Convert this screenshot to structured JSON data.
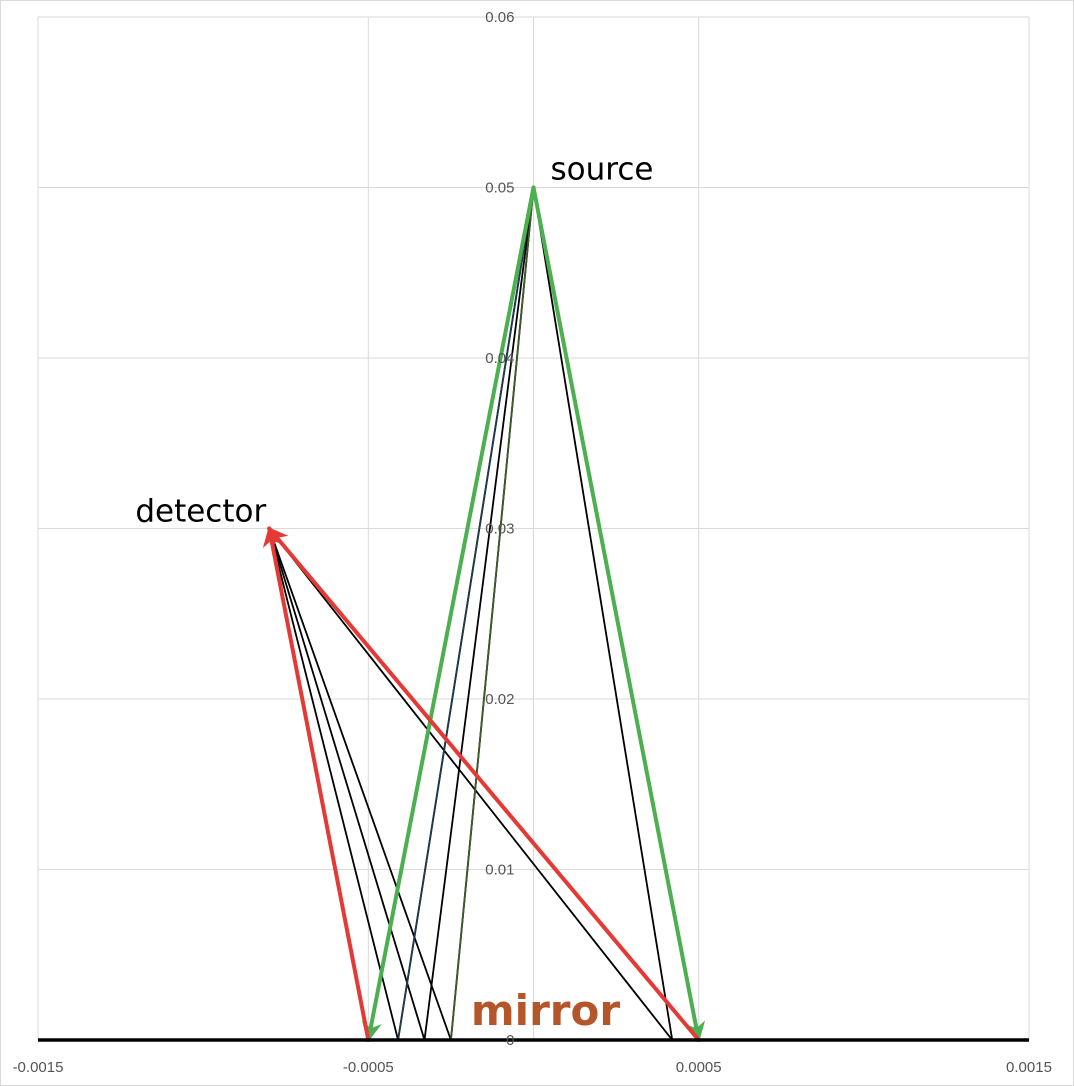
{
  "chart_data": {
    "type": "scatter",
    "title": "",
    "xlabel": "",
    "ylabel": "",
    "xlim": [
      -0.0015,
      0.0015
    ],
    "ylim": [
      0,
      0.06
    ],
    "x_ticks": [
      -0.0015,
      -0.0005,
      0.0005,
      0.0015
    ],
    "x_tick_labels": [
      "-0.0015",
      "-0.0005",
      "0.0005",
      "0.0015"
    ],
    "y_ticks": [
      0,
      0.01,
      0.02,
      0.03,
      0.04,
      0.05,
      0.06
    ],
    "y_tick_labels": [
      "0",
      "0.01",
      "0.02",
      "0.03",
      "0.04",
      "0.05",
      "0.06"
    ],
    "vertical_grid_x": [
      -0.0015,
      -0.0005,
      0,
      0.0005,
      0.0015
    ],
    "grid": true,
    "legend": "none",
    "axis_color": "#000000",
    "mirror_line": {
      "x": [
        -0.0015,
        0.0015
      ],
      "y": [
        0,
        0
      ],
      "color": "#000000"
    },
    "series": [
      {
        "color": "#000000",
        "arrow": false,
        "x": [
          -0.0008,
          -0.00041,
          0,
          -0.00041
        ],
        "y": [
          0.03,
          0,
          0.05,
          0
        ]
      },
      {
        "color": "#000000",
        "arrow": false,
        "x": [
          -0.0008,
          -0.00033,
          0,
          -0.00033
        ],
        "y": [
          0.03,
          0,
          0.05,
          0
        ]
      },
      {
        "color": "#000000",
        "arrow": false,
        "x": [
          -0.0008,
          -0.00025,
          0
        ],
        "y": [
          0.03,
          0,
          0.05
        ]
      },
      {
        "color": "#000000",
        "arrow": false,
        "x": [
          -0.0008,
          0.00042,
          0
        ],
        "y": [
          0.03,
          0,
          0.05
        ]
      },
      {
        "color": "#1f3a4d",
        "arrow": false,
        "x": [
          0,
          -0.00041
        ],
        "y": [
          0.05,
          0
        ]
      },
      {
        "color": "#3d5a2a",
        "arrow": false,
        "x": [
          0,
          -0.00025
        ],
        "y": [
          0.05,
          0
        ]
      },
      {
        "color": "#4caf50",
        "arrow": true,
        "x": [
          0,
          -0.0005
        ],
        "y": [
          0.05,
          0
        ]
      },
      {
        "color": "#4caf50",
        "arrow": true,
        "x": [
          0,
          0.0005
        ],
        "y": [
          0.05,
          0
        ]
      },
      {
        "color": "#e53935",
        "arrow": true,
        "x": [
          -0.0005,
          -0.0008
        ],
        "y": [
          0,
          0.03
        ]
      },
      {
        "color": "#e53935",
        "arrow": true,
        "x": [
          0.0005,
          -0.0008
        ],
        "y": [
          0,
          0.03
        ]
      }
    ],
    "annotations": [
      {
        "text": "source",
        "x": 0,
        "y": 0.05,
        "color": "#000000",
        "weight": "normal"
      },
      {
        "text": "detector",
        "x": -0.0008,
        "y": 0.03,
        "color": "#000000",
        "weight": "normal"
      },
      {
        "text": "mirror",
        "x": 0,
        "y": 0,
        "color": "#b5562a",
        "weight": "bold"
      }
    ]
  }
}
